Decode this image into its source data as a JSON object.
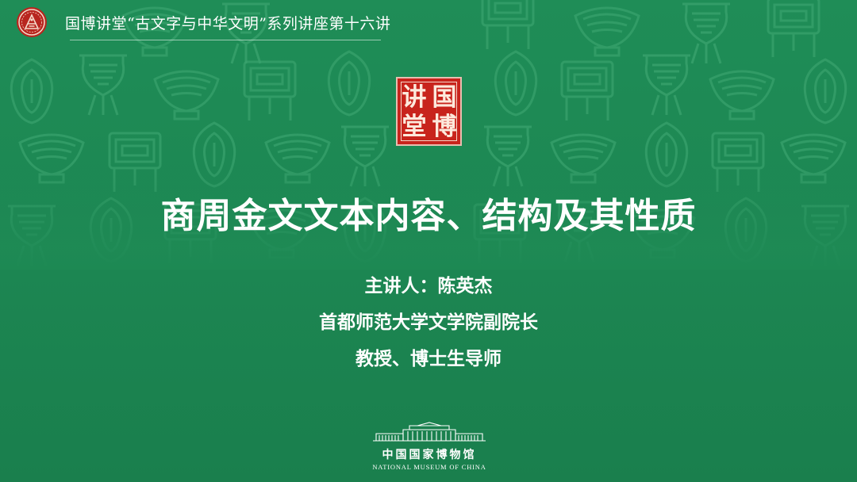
{
  "header": {
    "emblem_icon": "national-museum-emblem-icon",
    "series_title": "国博讲堂“古文字与中华文明”系列讲座第十六讲"
  },
  "seal": {
    "chars": [
      "讲",
      "国",
      "堂",
      "博"
    ],
    "color": "#c8241c"
  },
  "lecture": {
    "title": "商周金文文本内容、结构及其性质",
    "speaker_line": "主讲人：陈英杰",
    "affiliation": "首都师范大学文学院副院长",
    "position": "教授、博士生导师"
  },
  "museum": {
    "building_icon": "museum-building-icon",
    "name_cn": "中国国家博物馆",
    "name_en": "NATIONAL MUSEUM OF CHINA"
  },
  "colors": {
    "background": "#1e8a55",
    "pattern": "#3aa36e",
    "text": "#ffffff"
  }
}
